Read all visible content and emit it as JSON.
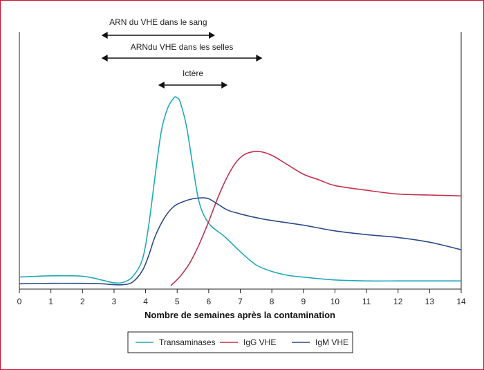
{
  "chart_data": {
    "type": "line",
    "title": "",
    "xlabel": "Nombre de semaines après la contamination",
    "ylabel": "",
    "x_ticks": [
      0,
      1,
      2,
      3,
      4,
      5,
      6,
      7,
      8,
      9,
      10,
      11,
      12,
      13,
      14
    ],
    "xlim": [
      0,
      14
    ],
    "ylim": [
      0,
      100
    ],
    "grid": false,
    "legend_position": "bottom-center",
    "annotations": [
      {
        "label": "ARN du VHE dans le sang",
        "x_start": 2.6,
        "x_end": 6.2
      },
      {
        "label": "ARNdu VHE dans les selles",
        "x_start": 2.6,
        "x_end": 7.7
      },
      {
        "label": "Ictère",
        "x_start": 4.4,
        "x_end": 6.6
      }
    ],
    "series": [
      {
        "name": "Transaminases",
        "color": "#1fa9b8",
        "x": [
          0,
          1,
          2,
          2.6,
          3,
          3.3,
          3.6,
          3.9,
          4.1,
          4.3,
          4.5,
          4.7,
          4.9,
          5.0,
          5.1,
          5.3,
          5.5,
          5.7,
          6.0,
          6.5,
          7.0,
          7.5,
          8.0,
          8.5,
          9.0,
          10.0,
          11.0,
          12.0,
          13.0,
          14.0
        ],
        "y": [
          4.5,
          5.2,
          5.0,
          3.0,
          1.5,
          1.8,
          5.0,
          14.0,
          32.0,
          58.0,
          82.0,
          94.0,
          99.5,
          99.5,
          97.0,
          84.0,
          63.0,
          44.0,
          33.0,
          26.0,
          18.0,
          11.0,
          7.5,
          5.5,
          4.5,
          3.0,
          2.5,
          2.5,
          2.5,
          2.5
        ]
      },
      {
        "name": "IgG VHE",
        "color": "#c23049",
        "x": [
          4.8,
          5.1,
          5.4,
          5.7,
          6.0,
          6.3,
          6.6,
          6.9,
          7.2,
          7.6,
          8.0,
          8.5,
          9.0,
          9.5,
          10.0,
          11.0,
          12.0,
          13.0,
          14.0
        ],
        "y": [
          0,
          5.0,
          12.0,
          22.0,
          34.0,
          47.0,
          58.0,
          66.0,
          70.0,
          71.0,
          69.0,
          64.0,
          59.0,
          56.0,
          53.0,
          50.5,
          48.5,
          48.0,
          47.5
        ]
      },
      {
        "name": "IgM VHE",
        "color": "#2b4a87",
        "x": [
          0,
          1,
          2,
          2.6,
          3,
          3.3,
          3.6,
          3.9,
          4.1,
          4.3,
          4.6,
          4.9,
          5.2,
          5.5,
          5.8,
          6.0,
          6.3,
          6.6,
          7.0,
          7.5,
          8.0,
          9.0,
          10.0,
          11.0,
          12.0,
          13.0,
          14.0
        ],
        "y": [
          1.0,
          1.2,
          1.2,
          1.0,
          0.5,
          0.5,
          2.0,
          8.0,
          16.0,
          26.0,
          36.0,
          42.0,
          44.5,
          46.0,
          46.5,
          46.0,
          43.0,
          40.0,
          38.0,
          36.0,
          34.5,
          32.0,
          29.0,
          27.0,
          25.5,
          23.0,
          19.0
        ]
      }
    ]
  }
}
